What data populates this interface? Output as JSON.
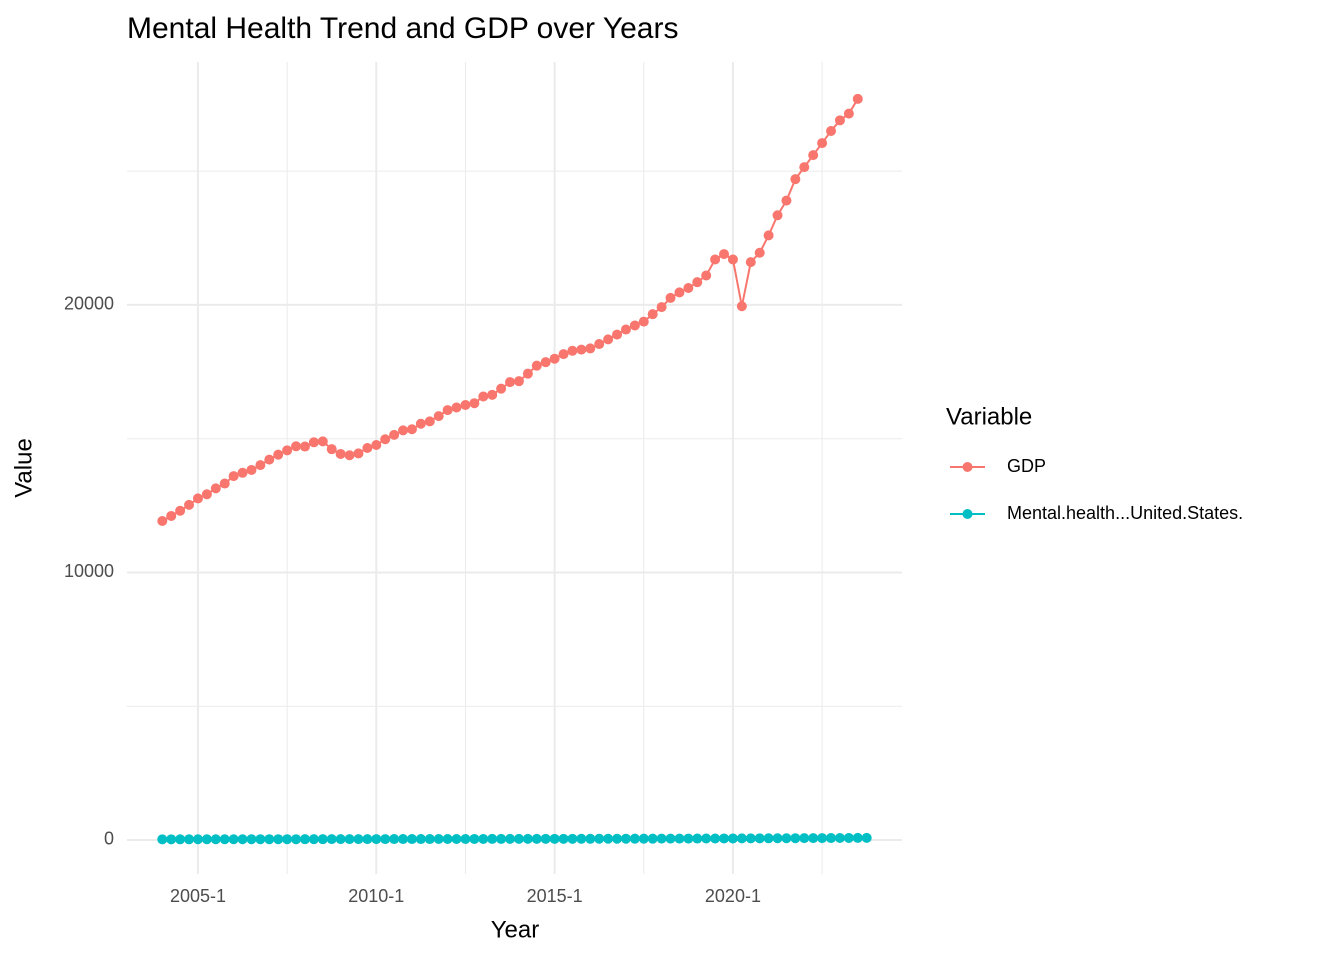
{
  "chart_data": {
    "type": "line",
    "title": "Mental Health Trend and GDP over Years",
    "x_label": "Year",
    "y_label": "Value",
    "legend_title": "Variable",
    "x": [
      2004,
      2004.25,
      2004.5,
      2004.75,
      2005,
      2005.25,
      2005.5,
      2005.75,
      2006,
      2006.25,
      2006.5,
      2006.75,
      2007,
      2007.25,
      2007.5,
      2007.75,
      2008,
      2008.25,
      2008.5,
      2008.75,
      2009,
      2009.25,
      2009.5,
      2009.75,
      2010,
      2010.25,
      2010.5,
      2010.75,
      2011,
      2011.25,
      2011.5,
      2011.75,
      2012,
      2012.25,
      2012.5,
      2012.75,
      2013,
      2013.25,
      2013.5,
      2013.75,
      2014,
      2014.25,
      2014.5,
      2014.75,
      2015,
      2015.25,
      2015.5,
      2015.75,
      2016,
      2016.25,
      2016.5,
      2016.75,
      2017,
      2017.25,
      2017.5,
      2017.75,
      2018,
      2018.25,
      2018.5,
      2018.75,
      2019,
      2019.25,
      2019.5,
      2019.75,
      2020,
      2020.25,
      2020.5,
      2020.75,
      2021,
      2021.25,
      2021.5,
      2021.75,
      2022,
      2022.25,
      2022.5,
      2022.75,
      2023,
      2023.25,
      2023.5,
      2023.75
    ],
    "series": [
      {
        "name": "GDP",
        "color": "#F8766D",
        "values": [
          11923,
          12112,
          12305,
          12527,
          12767,
          12922,
          13142,
          13324,
          13600,
          13725,
          13831,
          14011,
          14217,
          14403,
          14565,
          14716,
          14707,
          14865,
          14899,
          14609,
          14430,
          14381,
          14449,
          14652,
          14765,
          14980,
          15142,
          15310,
          15352,
          15558,
          15648,
          15843,
          16069,
          16166,
          16259,
          16327,
          16578,
          16640,
          16870,
          17116,
          17150,
          17431,
          17730,
          17860,
          17990,
          18161,
          18285,
          18330,
          18374,
          18538,
          18712,
          18891,
          19080,
          19232,
          19375,
          19655,
          19917,
          20262,
          20468,
          20633,
          20850,
          21100,
          21700,
          21900,
          21700,
          19950,
          21600,
          21950,
          22600,
          23350,
          23900,
          24700,
          25150,
          25600,
          26050,
          26500,
          26900,
          27150,
          27700,
          null
        ]
      },
      {
        "name": "Mental.health...United.States.",
        "color": "#00BFC4",
        "values": [
          25,
          25,
          26,
          26,
          27,
          27,
          27,
          28,
          28,
          28,
          29,
          29,
          29,
          30,
          30,
          30,
          31,
          31,
          31,
          32,
          32,
          33,
          33,
          33,
          34,
          34,
          35,
          35,
          35,
          36,
          36,
          37,
          37,
          38,
          38,
          39,
          39,
          40,
          40,
          41,
          41,
          42,
          42,
          43,
          43,
          44,
          44,
          45,
          45,
          46,
          47,
          47,
          48,
          49,
          49,
          50,
          51,
          52,
          52,
          53,
          54,
          55,
          56,
          57,
          58,
          60,
          61,
          62,
          63,
          65,
          66,
          67,
          69,
          70,
          72,
          73,
          75,
          76,
          78,
          80
        ]
      }
    ],
    "xlim": [
      2003.01,
      2024.74
    ],
    "xticks": [
      {
        "value": 2005,
        "label": "2005-1"
      },
      {
        "value": 2010,
        "label": "2010-1"
      },
      {
        "value": 2015,
        "label": "2015-1"
      },
      {
        "value": 2020,
        "label": "2020-1"
      }
    ],
    "ylim": [
      -1271,
      29080
    ],
    "yticks": [
      0,
      10000,
      20000
    ],
    "grid": true,
    "legend": "right"
  }
}
